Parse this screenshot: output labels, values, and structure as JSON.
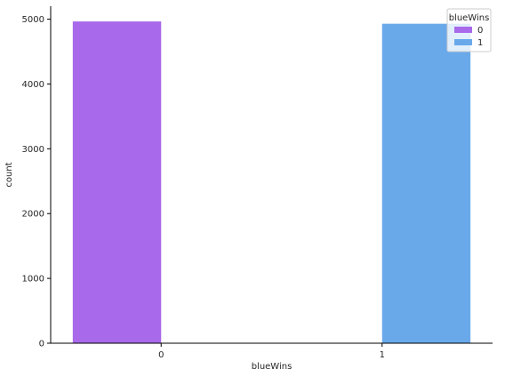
{
  "chart_data": {
    "type": "bar",
    "categories": [
      "0",
      "1"
    ],
    "hue_title": "blueWins",
    "series": [
      {
        "name": "0",
        "values": [
          4965,
          0
        ],
        "color": "#a869ea"
      },
      {
        "name": "1",
        "values": [
          0,
          4930
        ],
        "color": "#69a9ea"
      }
    ],
    "xlabel": "blueWins",
    "ylabel": "count",
    "ylim": [
      0,
      5200
    ],
    "yticks": [
      0,
      1000,
      2000,
      3000,
      4000,
      5000
    ],
    "grid": false,
    "legend_position": "top-right"
  }
}
